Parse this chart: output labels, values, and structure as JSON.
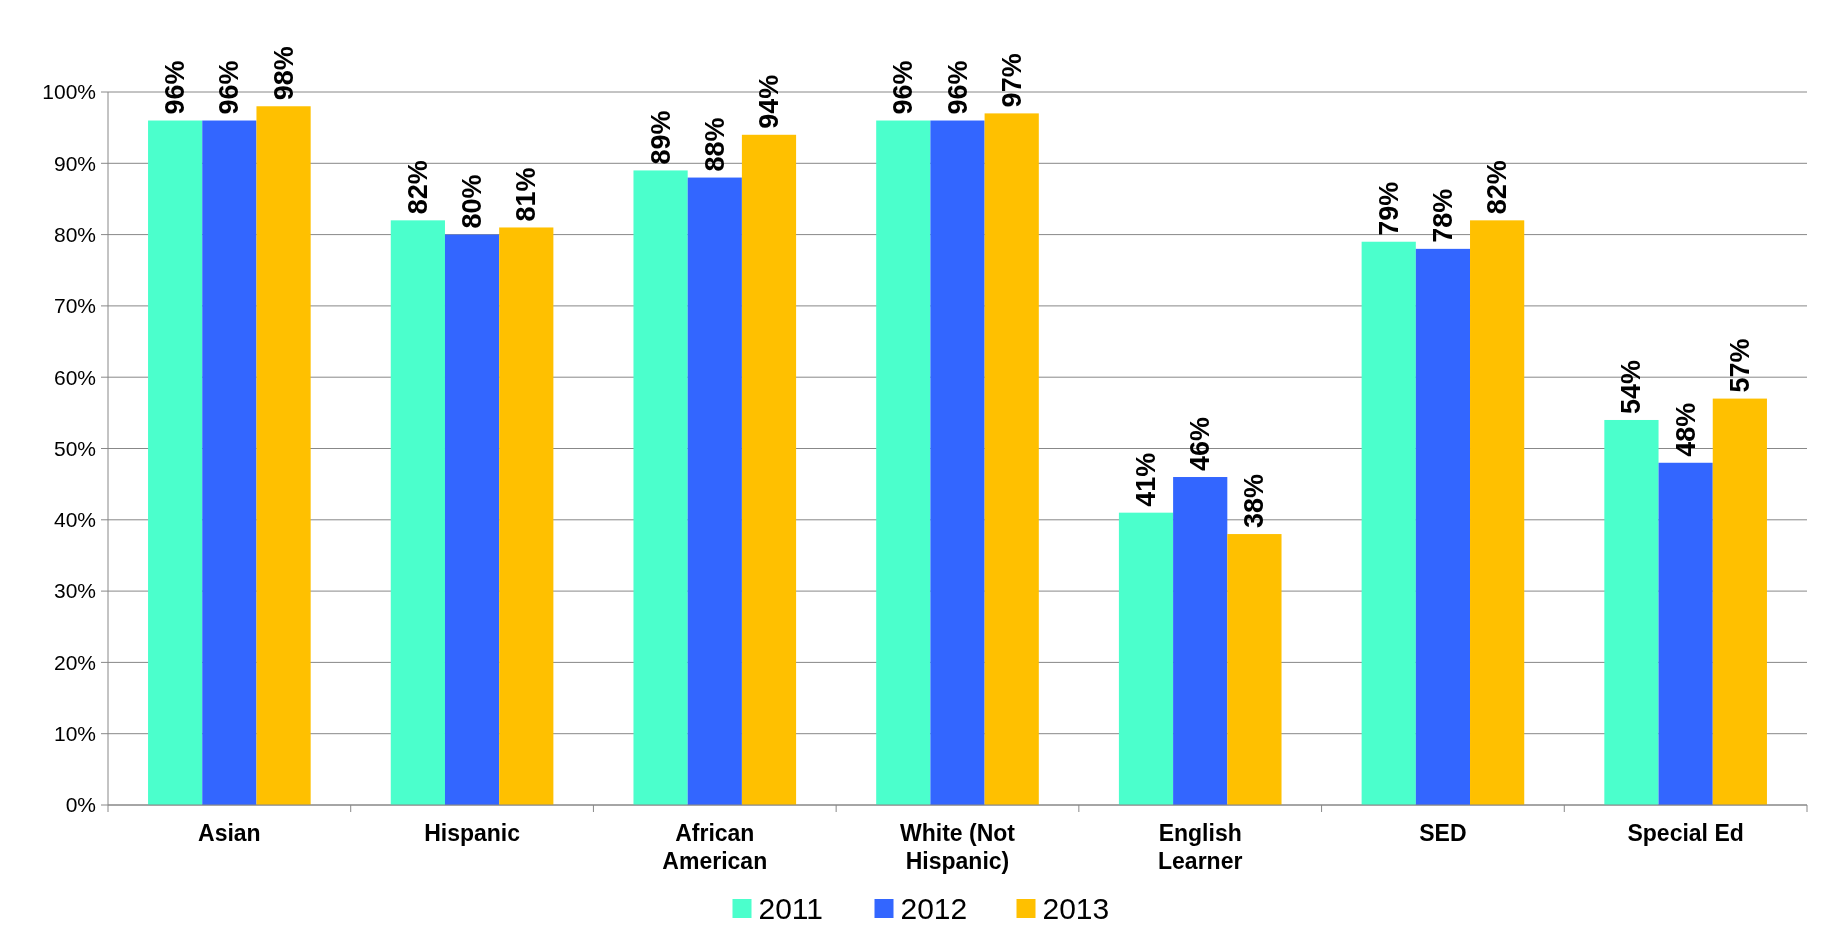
{
  "chart_data": {
    "type": "bar",
    "categories": [
      "Asian",
      "Hispanic",
      "African American",
      "White (Not Hispanic)",
      "English Learner",
      "SED",
      "Special Ed"
    ],
    "series": [
      {
        "name": "2011",
        "color": "#4bffcc",
        "values": [
          96,
          82,
          89,
          96,
          41,
          79,
          54
        ],
        "value_labels": [
          "96%",
          "82%",
          "89%",
          "96%",
          "41%",
          "79%",
          "54%"
        ]
      },
      {
        "name": "2012",
        "color": "#3366ff",
        "values": [
          96,
          80,
          88,
          96,
          46,
          78,
          48
        ],
        "value_labels": [
          "96%",
          "80%",
          "88%",
          "96%",
          "46%",
          "78%",
          "48%"
        ]
      },
      {
        "name": "2013",
        "color": "#ffc000",
        "values": [
          98,
          81,
          94,
          97,
          38,
          82,
          57
        ],
        "value_labels": [
          "98%",
          "81%",
          "94%",
          "97%",
          "38%",
          "82%",
          "57%"
        ]
      }
    ],
    "ylim": [
      0,
      100
    ],
    "yticks": [
      {
        "value": 0,
        "label": "0%"
      },
      {
        "value": 10,
        "label": "10%"
      },
      {
        "value": 20,
        "label": "20%"
      },
      {
        "value": 30,
        "label": "30%"
      },
      {
        "value": 40,
        "label": "40%"
      },
      {
        "value": 50,
        "label": "50%"
      },
      {
        "value": 60,
        "label": "60%"
      },
      {
        "value": 70,
        "label": "70%"
      },
      {
        "value": 80,
        "label": "80%"
      },
      {
        "value": 90,
        "label": "90%"
      },
      {
        "value": 100,
        "label": "100%"
      }
    ],
    "grid": "y",
    "legend": "bottom"
  }
}
